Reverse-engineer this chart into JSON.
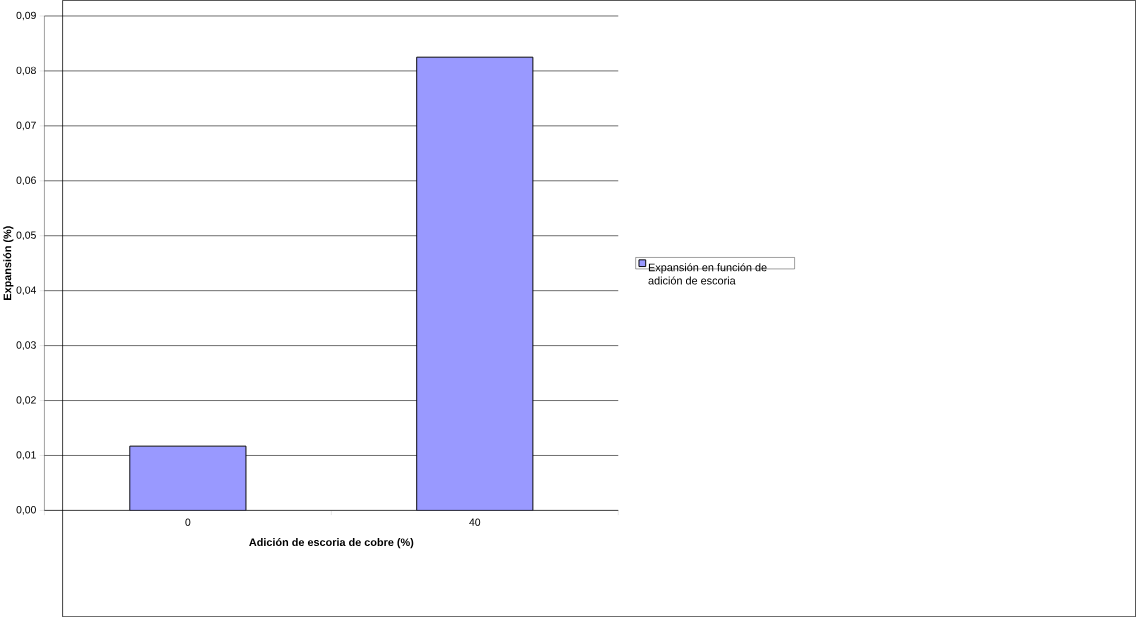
{
  "chart_data": {
    "type": "bar",
    "xlabel": "Adición de escoria de cobre (%)",
    "ylabel": "Expansión (%)",
    "categories": [
      "0",
      "40"
    ],
    "series": [
      {
        "name": "Expansión en función de adición de escoria",
        "color": "#9999ff",
        "values": [
          0.0117,
          0.0825
        ]
      }
    ],
    "ylim": [
      0,
      0.09
    ],
    "yticks": [
      {
        "value": 0,
        "label": "0,00"
      },
      {
        "value": 0.01,
        "label": "0,01"
      },
      {
        "value": 0.02,
        "label": "0,02"
      },
      {
        "value": 0.03,
        "label": "0,03"
      },
      {
        "value": 0.04,
        "label": "0,04"
      },
      {
        "value": 0.05,
        "label": "0,05"
      },
      {
        "value": 0.06,
        "label": "0,06"
      },
      {
        "value": 0.07,
        "label": "0,07"
      },
      {
        "value": 0.08,
        "label": "0,08"
      },
      {
        "value": 0.09,
        "label": "0,09"
      }
    ],
    "grid": "y",
    "legend": "right"
  }
}
